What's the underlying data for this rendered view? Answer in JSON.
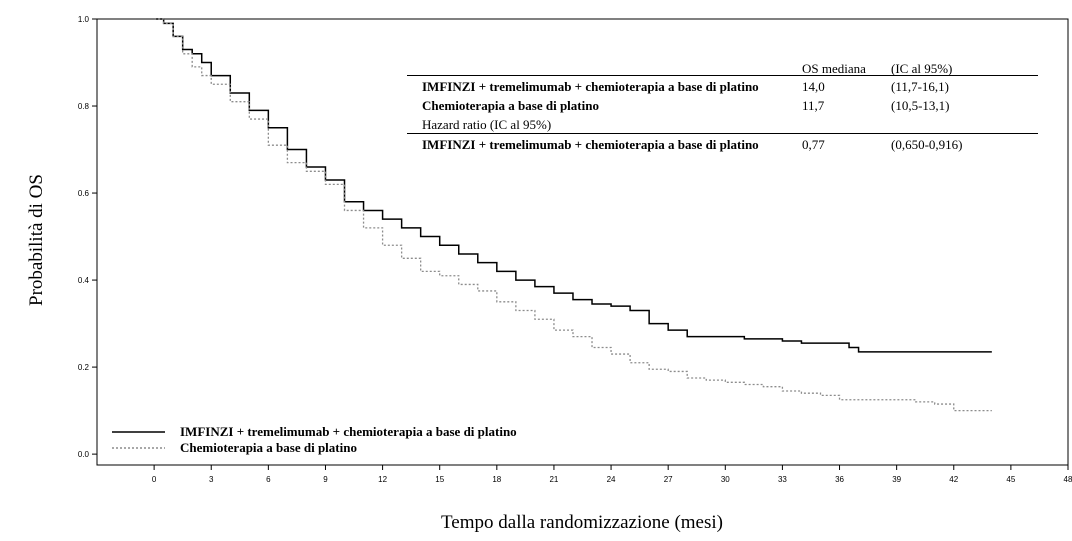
{
  "chart_data": {
    "type": "line",
    "step": true,
    "ylabel": "Probabilità di OS",
    "xlabel": "Tempo dalla randomizzazione (mesi)",
    "xlim": [
      -3,
      48
    ],
    "xticks": [
      0,
      3,
      6,
      9,
      12,
      15,
      18,
      21,
      24,
      27,
      30,
      33,
      36,
      39,
      42,
      45,
      48
    ],
    "ylim": [
      -0.025,
      1.0
    ],
    "yticks": [
      {
        "value": 0,
        "label": "0.0"
      },
      0.2,
      0.4,
      0.6,
      0.8,
      {
        "value": 1,
        "label": "1.0"
      }
    ],
    "series": [
      {
        "name": "IMFINZI + tremelimumab + chemioterapia a base di platino",
        "color": "#000000",
        "dash": "none",
        "x": [
          0,
          0.5,
          1,
          1.5,
          2,
          2.5,
          3,
          4,
          5,
          6,
          7,
          8,
          9,
          10,
          11,
          12,
          13,
          14,
          15,
          16,
          17,
          18,
          19,
          20,
          21,
          22,
          23,
          24,
          25,
          26,
          27,
          28,
          30,
          31,
          33,
          34,
          36,
          36.5,
          37,
          44
        ],
        "values": [
          1.0,
          0.99,
          0.96,
          0.93,
          0.92,
          0.9,
          0.87,
          0.83,
          0.79,
          0.75,
          0.7,
          0.66,
          0.63,
          0.58,
          0.56,
          0.54,
          0.52,
          0.5,
          0.48,
          0.46,
          0.44,
          0.42,
          0.4,
          0.385,
          0.37,
          0.355,
          0.345,
          0.34,
          0.33,
          0.3,
          0.285,
          0.27,
          0.27,
          0.265,
          0.26,
          0.255,
          0.255,
          0.245,
          0.235,
          0.235
        ]
      },
      {
        "name": "Chemioterapia a base di platino",
        "color": "#8c8c8c",
        "dash": "2,2",
        "x": [
          0,
          0.5,
          1,
          1.5,
          2,
          2.5,
          3,
          4,
          5,
          6,
          7,
          8,
          9,
          10,
          11,
          12,
          13,
          14,
          15,
          16,
          17,
          18,
          19,
          20,
          21,
          22,
          23,
          24,
          25,
          26,
          27,
          28,
          29,
          30,
          31,
          32,
          33,
          34,
          35,
          36,
          38,
          40,
          41,
          42,
          44
        ],
        "values": [
          1.0,
          0.99,
          0.96,
          0.92,
          0.89,
          0.87,
          0.85,
          0.81,
          0.77,
          0.71,
          0.67,
          0.65,
          0.62,
          0.56,
          0.52,
          0.48,
          0.45,
          0.42,
          0.41,
          0.39,
          0.375,
          0.35,
          0.33,
          0.31,
          0.285,
          0.27,
          0.245,
          0.23,
          0.21,
          0.195,
          0.19,
          0.175,
          0.17,
          0.165,
          0.16,
          0.155,
          0.145,
          0.14,
          0.135,
          0.125,
          0.125,
          0.12,
          0.115,
          0.1,
          0.1
        ]
      }
    ],
    "table": {
      "header": [
        "OS mediana",
        "(IC al 95%)"
      ],
      "rows": [
        [
          "IMFINZI + tremelimumab + chemioterapia a base di platino",
          "14,0",
          "(11,7-16,1)"
        ],
        [
          "Chemioterapia a base di platino",
          "11,7",
          "(10,5-13,1)"
        ]
      ],
      "hr_label": "Hazard ratio (IC al 95%)",
      "hr_row": [
        "IMFINZI + tremelimumab + chemioterapia a base di platino",
        "0,77",
        "(0,650-0,916)"
      ]
    }
  }
}
